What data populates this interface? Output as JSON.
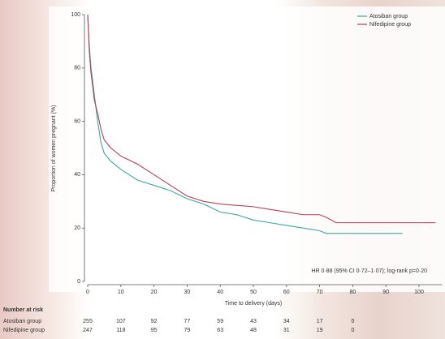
{
  "chart_data": {
    "type": "line",
    "y_label": "Proportion of women pregnant (%)",
    "x_label": "Time to delivery (days)",
    "annotation": "HR 0·88 (95% CI 0·72–1·07); log-rank p=0·20",
    "xlim": [
      0,
      107
    ],
    "xticks": [
      0,
      10,
      20,
      30,
      40,
      50,
      60,
      70,
      80,
      90,
      100
    ],
    "ylim": [
      0,
      100
    ],
    "yticks": [
      0,
      20,
      40,
      60,
      80,
      100
    ],
    "legend": "upper right",
    "series": [
      {
        "name": "Atosiban group",
        "color": "#3fa6a0",
        "x": [
          0,
          0.5,
          1,
          2,
          3,
          4,
          5,
          7,
          10,
          15,
          20,
          25,
          30,
          35,
          40,
          45,
          50,
          55,
          60,
          65,
          70,
          72,
          80,
          95
        ],
        "values": [
          100,
          88,
          80,
          70,
          60,
          52,
          48,
          45,
          42,
          38,
          36,
          34,
          31,
          29,
          26,
          25,
          23,
          22,
          21,
          20,
          19,
          18,
          18,
          18
        ]
      },
      {
        "name": "Nifedipine group",
        "color": "#b5405a",
        "x": [
          0,
          0.5,
          1,
          2,
          3,
          4,
          5,
          7,
          10,
          15,
          20,
          25,
          30,
          35,
          40,
          50,
          55,
          60,
          65,
          70,
          72,
          75,
          80,
          105
        ],
        "values": [
          100,
          86,
          78,
          68,
          63,
          57,
          53,
          50,
          47,
          44,
          40,
          36,
          32,
          30,
          29,
          28,
          27,
          26,
          25,
          25,
          24,
          22,
          22,
          22
        ]
      }
    ],
    "risk_table": {
      "title": "Number at risk",
      "x": [
        0,
        10,
        20,
        30,
        40,
        50,
        60,
        70,
        80
      ],
      "rows": [
        {
          "name": "Atosiban group",
          "values": [
            255,
            107,
            92,
            77,
            59,
            43,
            34,
            17,
            0
          ]
        },
        {
          "name": "Nifedipine group",
          "values": [
            247,
            118,
            95,
            79,
            63,
            48,
            31,
            19,
            0
          ]
        }
      ]
    }
  }
}
